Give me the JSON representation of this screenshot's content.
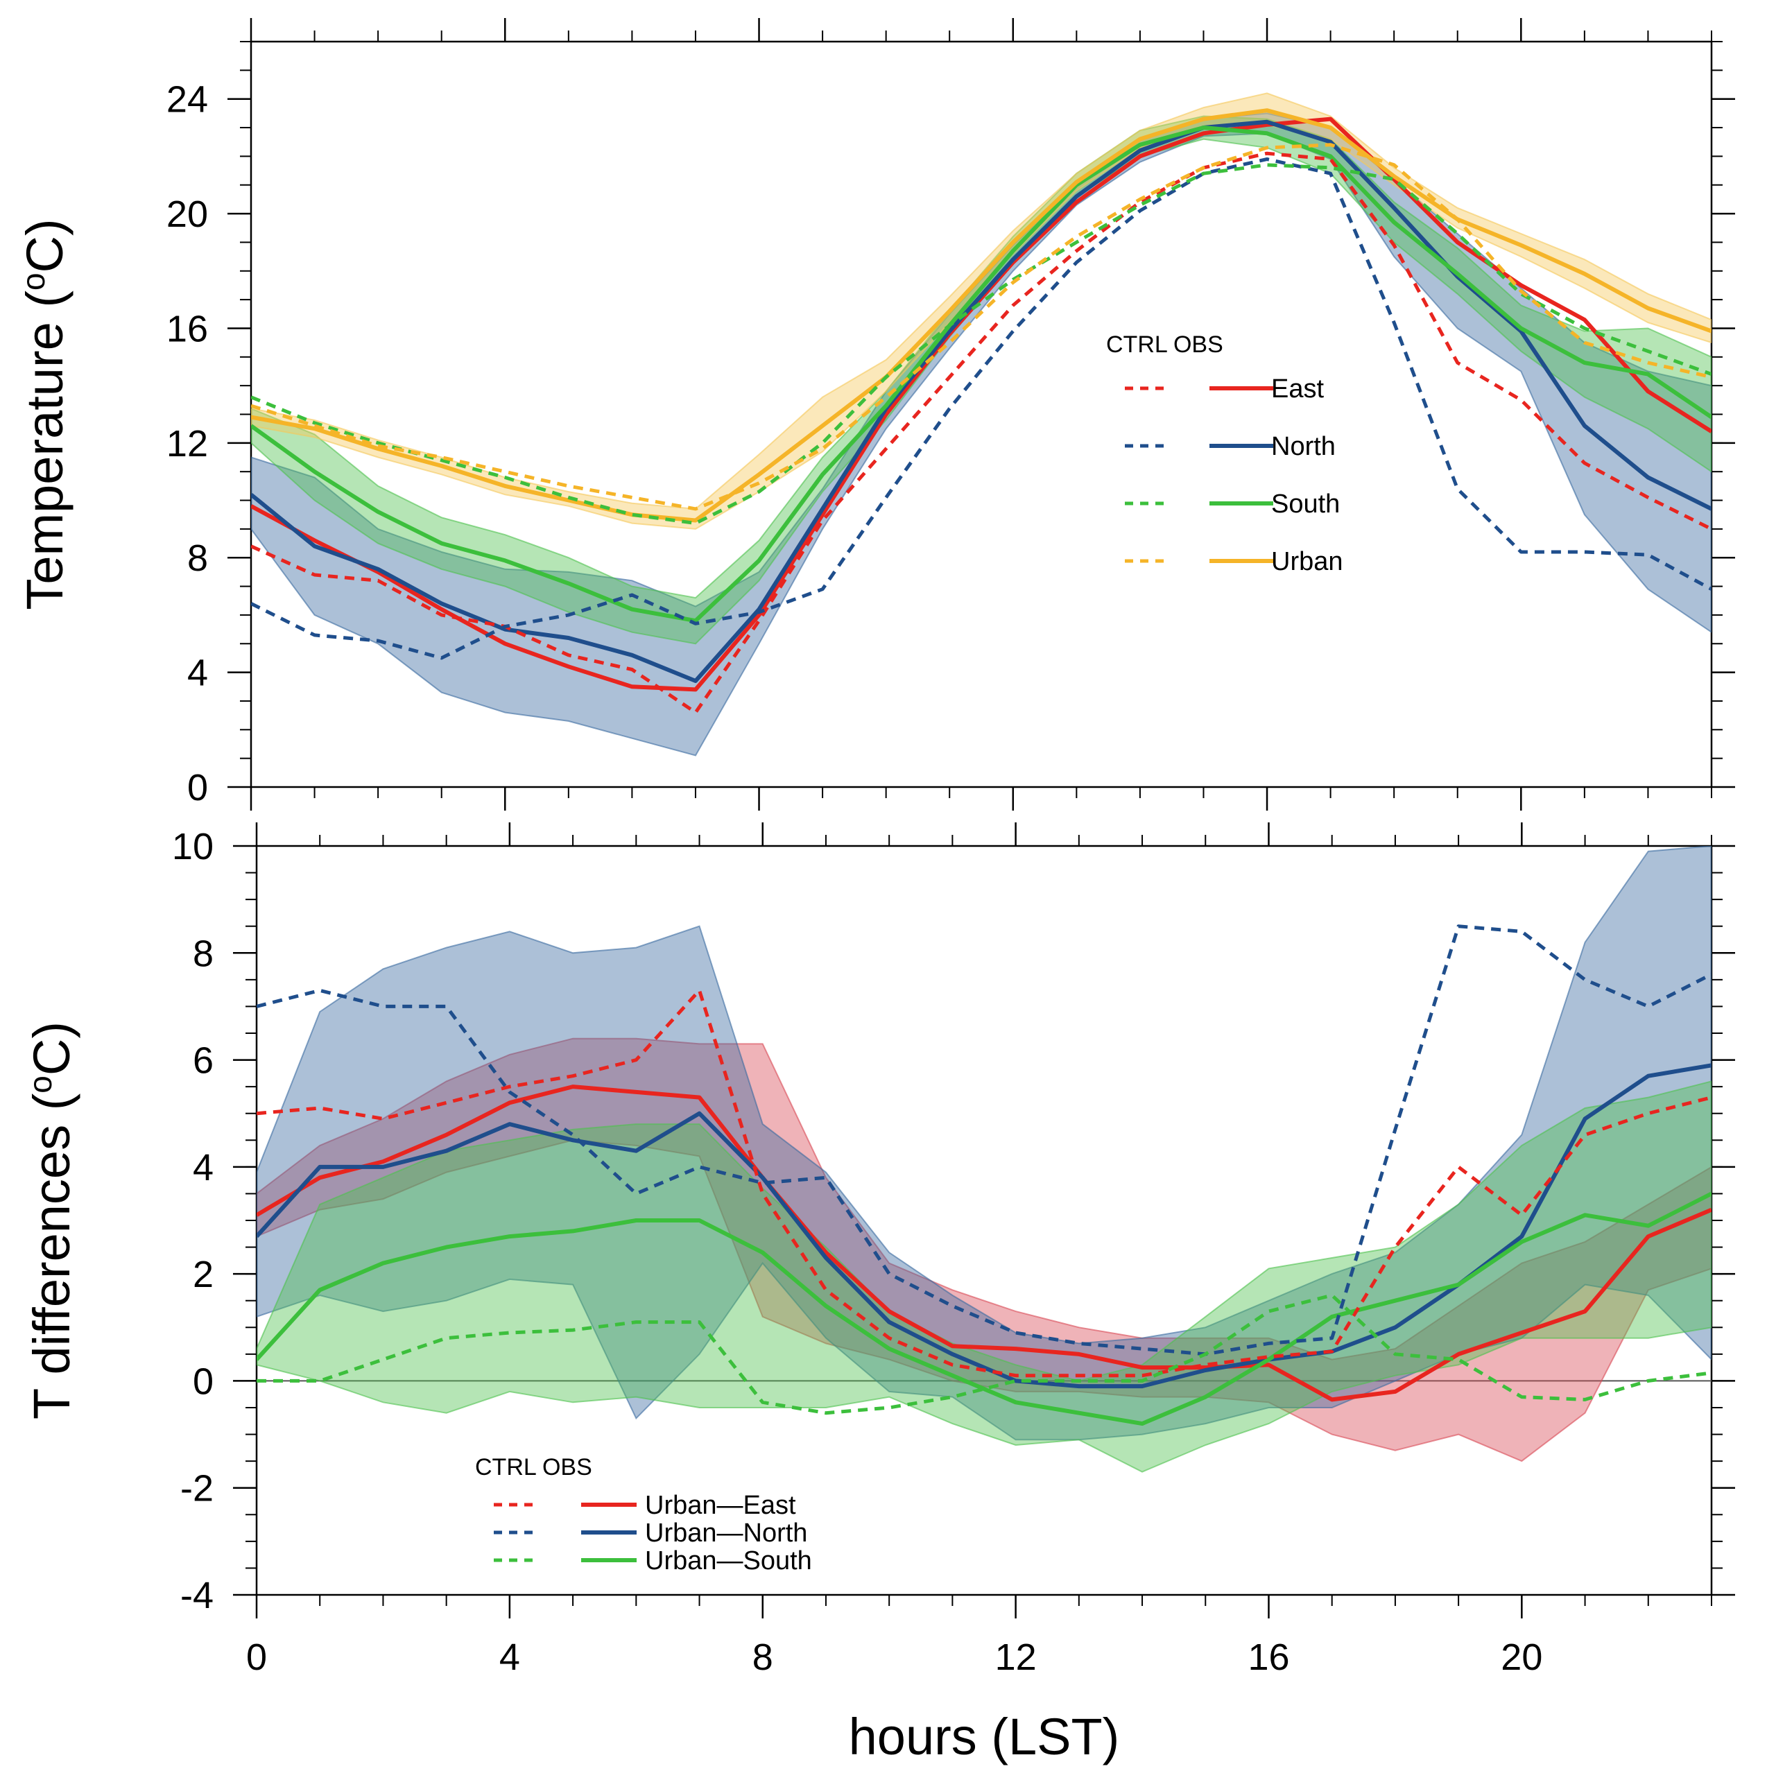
{
  "colors": {
    "East": "#e8251f",
    "North": "#1f4e8c",
    "South": "#3cbf3c",
    "Urban": "#f5b428",
    "band_East": "#d94a55",
    "band_North": "#3a6aa0",
    "band_South": "#4ec24e",
    "band_Urban": "#f5c85a"
  },
  "chart_data": [
    {
      "type": "line",
      "ylabel": "Temperature (oC)",
      "xlabel": "",
      "xlim": [
        0,
        23
      ],
      "ylim": [
        0,
        26
      ],
      "yticks": [
        "0",
        "4",
        "8",
        "12",
        "16",
        "20",
        "24"
      ],
      "ytick_values": [
        0,
        4,
        8,
        12,
        16,
        20,
        24
      ],
      "xtick_values": [
        0,
        4,
        8,
        12,
        16,
        20
      ],
      "x": [
        0,
        1,
        2,
        3,
        4,
        5,
        6,
        7,
        8,
        9,
        10,
        11,
        12,
        13,
        14,
        15,
        16,
        17,
        18,
        19,
        20,
        21,
        22,
        23
      ],
      "legend": {
        "header": "CTRL OBS",
        "entries": [
          "East",
          "North",
          "South",
          "Urban"
        ]
      },
      "series": [
        {
          "name": "East",
          "kind": "CTRL",
          "values": [
            9.8,
            8.6,
            7.5,
            6.2,
            5.0,
            4.2,
            3.5,
            3.4,
            6.0,
            9.5,
            13.0,
            15.8,
            18.3,
            20.4,
            22.0,
            22.8,
            23.1,
            23.3,
            21.2,
            19.0,
            17.5,
            16.3,
            13.8,
            12.4
          ],
          "band": null
        },
        {
          "name": "North",
          "kind": "CTRL",
          "values": [
            10.2,
            8.4,
            7.6,
            6.4,
            5.5,
            5.2,
            4.6,
            3.7,
            6.2,
            9.7,
            13.2,
            15.9,
            18.4,
            20.6,
            22.2,
            23.0,
            23.2,
            22.5,
            20.2,
            17.8,
            15.9,
            12.6,
            10.8,
            9.7
          ],
          "band": {
            "lower": [
              9.0,
              6.0,
              5.0,
              3.3,
              2.6,
              2.3,
              1.7,
              1.1,
              5.0,
              9.0,
              12.5,
              15.3,
              18.0,
              20.3,
              21.8,
              22.7,
              22.8,
              21.9,
              18.5,
              16.0,
              14.5,
              9.5,
              6.9,
              5.4
            ],
            "upper": [
              11.5,
              10.8,
              9.0,
              8.2,
              7.6,
              7.5,
              7.2,
              6.3,
              7.5,
              10.4,
              13.8,
              16.5,
              18.9,
              21.0,
              22.6,
              23.3,
              23.5,
              23.0,
              21.2,
              19.3,
              17.4,
              15.5,
              14.5,
              14.0
            ]
          }
        },
        {
          "name": "South",
          "kind": "CTRL",
          "values": [
            12.6,
            11.0,
            9.6,
            8.5,
            7.9,
            7.1,
            6.2,
            5.8,
            7.9,
            10.9,
            13.3,
            16.1,
            18.7,
            21.0,
            22.4,
            23.0,
            22.8,
            22.0,
            19.7,
            17.9,
            16.0,
            14.8,
            14.4,
            12.9
          ],
          "band": {
            "lower": [
              12.0,
              10.0,
              8.5,
              7.6,
              7.0,
              6.1,
              5.4,
              5.0,
              7.2,
              10.3,
              12.8,
              15.7,
              18.3,
              20.6,
              22.0,
              22.6,
              22.3,
              21.4,
              19.0,
              17.2,
              15.2,
              13.6,
              12.5,
              11.0
            ],
            "upper": [
              13.2,
              12.3,
              10.5,
              9.4,
              8.8,
              8.0,
              7.0,
              6.6,
              8.6,
              11.5,
              13.8,
              16.6,
              19.2,
              21.4,
              22.9,
              23.4,
              23.3,
              22.6,
              20.4,
              18.8,
              16.8,
              15.9,
              16.0,
              15.0
            ]
          }
        },
        {
          "name": "Urban",
          "kind": "CTRL",
          "values": [
            12.9,
            12.5,
            11.8,
            11.2,
            10.5,
            10.0,
            9.5,
            9.3,
            10.9,
            12.6,
            14.3,
            16.6,
            19.0,
            21.1,
            22.6,
            23.3,
            23.6,
            23.0,
            21.3,
            19.8,
            18.9,
            17.9,
            16.7,
            15.9
          ],
          "band": {
            "lower": [
              12.6,
              12.2,
              11.5,
              10.9,
              10.2,
              9.8,
              9.2,
              9.0,
              10.3,
              11.7,
              13.8,
              16.2,
              18.6,
              20.8,
              22.3,
              23.0,
              23.1,
              22.6,
              21.0,
              19.5,
              18.5,
              17.4,
              16.2,
              15.5
            ],
            "upper": [
              13.2,
              12.8,
              12.1,
              11.5,
              10.8,
              10.3,
              9.9,
              9.7,
              11.6,
              13.6,
              14.9,
              17.1,
              19.4,
              21.4,
              22.9,
              23.7,
              24.2,
              23.4,
              21.6,
              20.2,
              19.3,
              18.4,
              17.2,
              16.3
            ]
          }
        },
        {
          "name": "East",
          "kind": "OBS",
          "values": [
            8.4,
            7.4,
            7.2,
            6.0,
            5.6,
            4.6,
            4.1,
            2.6,
            5.8,
            9.3,
            11.8,
            14.3,
            16.8,
            18.7,
            20.4,
            21.6,
            22.1,
            21.9,
            18.9,
            14.8,
            13.5,
            11.3,
            10.1,
            9.0
          ],
          "band": null
        },
        {
          "name": "North",
          "kind": "OBS",
          "values": [
            6.4,
            5.3,
            5.1,
            4.5,
            5.6,
            6.0,
            6.7,
            5.7,
            6.1,
            6.9,
            10.1,
            13.2,
            15.9,
            18.3,
            20.1,
            21.4,
            21.9,
            21.4,
            16.2,
            10.4,
            8.2,
            8.2,
            8.1,
            6.9
          ],
          "band": null
        },
        {
          "name": "South",
          "kind": "OBS",
          "values": [
            13.6,
            12.7,
            12.0,
            11.4,
            10.8,
            10.1,
            9.5,
            9.2,
            10.3,
            12.0,
            14.3,
            16.1,
            17.7,
            19.0,
            20.3,
            21.4,
            21.7,
            21.6,
            21.2,
            19.3,
            17.2,
            16.0,
            15.2,
            14.4
          ],
          "band": null
        },
        {
          "name": "Urban",
          "kind": "OBS",
          "values": [
            13.3,
            12.6,
            11.9,
            11.5,
            11.0,
            10.5,
            10.1,
            9.7,
            10.6,
            11.8,
            13.6,
            15.5,
            17.6,
            19.2,
            20.5,
            21.6,
            22.3,
            22.4,
            21.7,
            19.8,
            17.3,
            15.5,
            14.8,
            14.3
          ],
          "band": null
        }
      ]
    },
    {
      "type": "line",
      "ylabel": "T differences (oC)",
      "xlabel": "hours (LST)",
      "xlim": [
        0,
        23
      ],
      "ylim": [
        -4,
        10
      ],
      "yticks": [
        "-4",
        "-2",
        "0",
        "2",
        "4",
        "6",
        "8",
        "10"
      ],
      "ytick_values": [
        -4,
        -2,
        0,
        2,
        4,
        6,
        8,
        10
      ],
      "xticks": [
        "0",
        "4",
        "8",
        "12",
        "16",
        "20"
      ],
      "xtick_values": [
        0,
        4,
        8,
        12,
        16,
        20
      ],
      "x": [
        0,
        1,
        2,
        3,
        4,
        5,
        6,
        7,
        8,
        9,
        10,
        11,
        12,
        13,
        14,
        15,
        16,
        17,
        18,
        19,
        20,
        21,
        22,
        23
      ],
      "legend": {
        "header": "CTRL OBS",
        "entries": [
          "Urban—East",
          "Urban—North",
          "Urban—South"
        ]
      },
      "series": [
        {
          "name": "Urban—East",
          "color_key": "East",
          "kind": "CTRL",
          "values": [
            3.1,
            3.8,
            4.1,
            4.6,
            5.2,
            5.5,
            5.4,
            5.3,
            3.8,
            2.4,
            1.3,
            0.65,
            0.6,
            0.5,
            0.25,
            0.25,
            0.3,
            -0.35,
            -0.2,
            0.5,
            0.9,
            1.3,
            2.7,
            3.2
          ],
          "band": {
            "lower": [
              2.7,
              3.2,
              3.4,
              3.9,
              4.2,
              4.5,
              4.4,
              4.2,
              1.2,
              0.7,
              0.4,
              0.0,
              -0.2,
              -0.2,
              -0.3,
              -0.3,
              -0.4,
              -1.0,
              -1.3,
              -1.0,
              -1.5,
              -0.6,
              1.7,
              2.1
            ],
            "upper": [
              3.5,
              4.4,
              4.9,
              5.6,
              6.1,
              6.4,
              6.4,
              6.3,
              6.3,
              3.8,
              2.2,
              1.7,
              1.3,
              1.0,
              0.8,
              0.8,
              0.8,
              0.4,
              0.6,
              1.4,
              2.2,
              2.6,
              3.3,
              4.0
            ]
          }
        },
        {
          "name": "Urban—North",
          "color_key": "North",
          "kind": "CTRL",
          "values": [
            2.7,
            4.0,
            4.0,
            4.3,
            4.8,
            4.5,
            4.3,
            5.0,
            3.8,
            2.3,
            1.1,
            0.5,
            0.0,
            -0.1,
            -0.1,
            0.2,
            0.4,
            0.55,
            1.0,
            1.8,
            2.7,
            4.9,
            5.7,
            5.9
          ],
          "band": {
            "lower": [
              1.2,
              1.6,
              1.3,
              1.5,
              1.9,
              1.8,
              -0.7,
              0.5,
              2.2,
              0.8,
              -0.2,
              -0.3,
              -1.1,
              -1.1,
              -1.0,
              -0.8,
              -0.5,
              -0.5,
              0.0,
              0.5,
              0.8,
              1.8,
              1.6,
              0.4
            ],
            "upper": [
              3.9,
              6.9,
              7.7,
              8.1,
              8.4,
              8.0,
              8.1,
              8.5,
              4.8,
              3.9,
              2.4,
              1.6,
              0.9,
              0.7,
              0.8,
              1.0,
              1.5,
              2.0,
              2.4,
              3.3,
              4.6,
              8.2,
              9.9,
              10.0
            ]
          }
        },
        {
          "name": "Urban—South",
          "color_key": "South",
          "kind": "CTRL",
          "values": [
            0.4,
            1.7,
            2.2,
            2.5,
            2.7,
            2.8,
            3.0,
            3.0,
            2.4,
            1.4,
            0.6,
            0.1,
            -0.4,
            -0.6,
            -0.8,
            -0.3,
            0.4,
            1.2,
            1.5,
            1.8,
            2.6,
            3.1,
            2.9,
            3.5
          ],
          "band": {
            "lower": [
              0.3,
              0.0,
              -0.4,
              -0.6,
              -0.2,
              -0.4,
              -0.3,
              -0.5,
              -0.5,
              -0.5,
              -0.3,
              -0.8,
              -1.2,
              -1.1,
              -1.7,
              -1.2,
              -0.8,
              -0.2,
              0.1,
              0.3,
              0.8,
              0.8,
              0.8,
              1.0
            ],
            "upper": [
              0.6,
              3.3,
              3.8,
              4.3,
              4.5,
              4.7,
              4.8,
              4.8,
              3.6,
              2.5,
              1.3,
              0.7,
              0.3,
              0.0,
              0.3,
              1.2,
              2.1,
              2.3,
              2.5,
              3.3,
              4.4,
              5.1,
              5.3,
              5.6
            ]
          }
        },
        {
          "name": "Urban—East",
          "color_key": "East",
          "kind": "OBS",
          "values": [
            5.0,
            5.1,
            4.9,
            5.2,
            5.5,
            5.7,
            6.0,
            7.3,
            3.5,
            1.7,
            0.8,
            0.3,
            0.1,
            0.1,
            0.1,
            0.3,
            0.45,
            0.55,
            2.5,
            4.0,
            3.1,
            4.6,
            5.0,
            5.3
          ],
          "band": null
        },
        {
          "name": "Urban—North",
          "color_key": "North",
          "kind": "OBS",
          "values": [
            7.0,
            7.3,
            7.0,
            7.0,
            5.4,
            4.6,
            3.5,
            4.0,
            3.7,
            3.8,
            2.0,
            1.4,
            0.9,
            0.7,
            0.6,
            0.5,
            0.7,
            0.8,
            4.7,
            8.5,
            8.4,
            7.5,
            7.0,
            7.6
          ],
          "band": null
        },
        {
          "name": "Urban—South",
          "color_key": "South",
          "kind": "OBS",
          "values": [
            0.0,
            0.0,
            0.4,
            0.8,
            0.9,
            0.95,
            1.1,
            1.1,
            -0.4,
            -0.6,
            -0.5,
            -0.3,
            0.0,
            0.0,
            0.0,
            0.5,
            1.3,
            1.6,
            0.5,
            0.4,
            -0.3,
            -0.35,
            0.0,
            0.15
          ],
          "band": null
        }
      ]
    }
  ]
}
